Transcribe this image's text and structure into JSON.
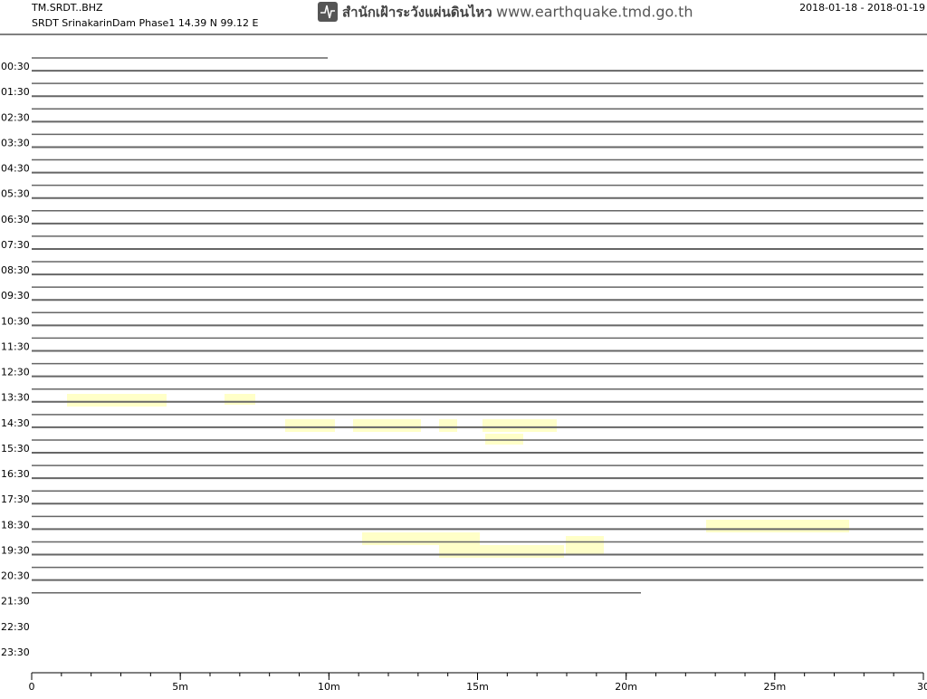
{
  "header": {
    "station": "TM.SRDT..BHZ",
    "description": "SRDT SrinakarinDam Phase1  14.39 N 99.12 E",
    "agency": "สำนักเฝ้าระวังแผ่นดินไหว",
    "website": "www.earthquake.tmd.go.th",
    "date_range": "2018-01-18 - 2018-01-19"
  },
  "chart_data": {
    "type": "helicorder",
    "row_labels": [
      "00:30",
      "01:30",
      "02:30",
      "03:30",
      "04:30",
      "05:30",
      "06:30",
      "07:30",
      "08:30",
      "09:30",
      "10:30",
      "11:30",
      "12:30",
      "13:30",
      "14:30",
      "15:30",
      "16:30",
      "17:30",
      "18:30",
      "19:30",
      "20:30",
      "21:30",
      "22:30",
      "23:30"
    ],
    "xlim": [
      0,
      30
    ],
    "xticks": [
      0,
      {
        "value": 5,
        "label": "5m"
      },
      {
        "value": 10,
        "label": "10m"
      },
      {
        "value": 15,
        "label": "15m"
      },
      {
        "value": 20,
        "label": "20m"
      },
      {
        "value": 25,
        "label": "25m"
      },
      {
        "value": 30,
        "label": "30"
      }
    ],
    "trace_color": "#666666"
  }
}
